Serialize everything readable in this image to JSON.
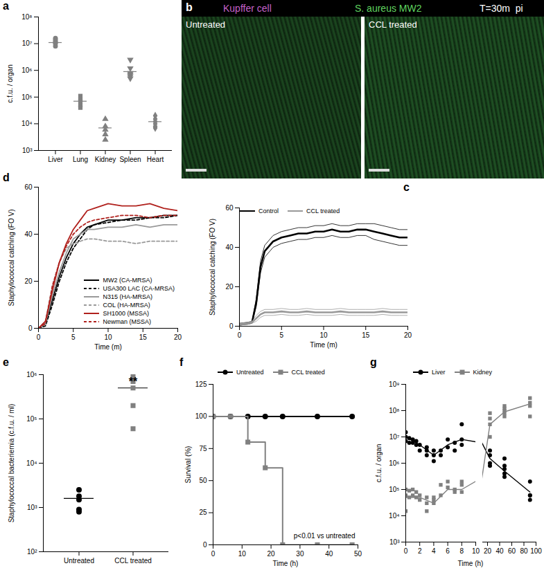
{
  "chart_data": [
    {
      "panel": "a",
      "type": "scatter",
      "ylabel": "c.f.u. / organ",
      "log": "y",
      "ylim": [
        1000,
        100000000
      ],
      "yticks": [
        {
          "value": 1000,
          "label": "10³"
        },
        {
          "value": 10000,
          "label": "10⁴"
        },
        {
          "value": 100000,
          "label": "10⁵"
        },
        {
          "value": 1000000,
          "label": "10⁶"
        },
        {
          "value": 10000000,
          "label": "10⁷"
        },
        {
          "value": 100000000,
          "label": "10⁸"
        }
      ],
      "series": [
        {
          "name": "Liver",
          "marker": "circle",
          "color": "#808080",
          "values": [
            12000000,
            14000000,
            8000000,
            10000000,
            16000000,
            11000000
          ],
          "mean": 11000000
        },
        {
          "name": "Lung",
          "marker": "square",
          "color": "#808080",
          "values": [
            110000,
            70000,
            50000,
            40000,
            80000
          ],
          "mean": 70000
        },
        {
          "name": "Kidney",
          "marker": "triangle",
          "color": "#808080",
          "values": [
            15000,
            8000,
            6000,
            2500,
            4000
          ],
          "mean": 7000
        },
        {
          "name": "Spleen",
          "marker": "triangle-down",
          "color": "#808080",
          "values": [
            2500000,
            1200000,
            800000,
            600000,
            700000,
            500000
          ],
          "mean": 900000
        },
        {
          "name": "Heart",
          "marker": "diamond",
          "color": "#808080",
          "values": [
            20000,
            15000,
            12000,
            10000,
            7000,
            8000
          ],
          "mean": 12000
        }
      ]
    },
    {
      "panel": "b",
      "type": "image",
      "labels": {
        "channel1": "Kupffer cell",
        "channel2": "S. aureus MW2",
        "time": "T=30m  pi",
        "left": "Untreated",
        "right": "CCL treated"
      },
      "colors": [
        "#c561c9",
        "#5fd35f"
      ]
    },
    {
      "panel": "c",
      "type": "line",
      "xlabel": "Time (m)",
      "ylabel": "Staphylococcal catching (FO V)",
      "x": [
        0,
        1,
        1.5,
        2,
        2.5,
        3,
        4,
        5,
        6,
        7,
        8,
        9,
        10,
        11,
        12,
        13,
        14,
        15,
        16,
        17,
        18,
        19,
        20
      ],
      "xlim": [
        0,
        20
      ],
      "xticks": [
        0,
        5,
        10,
        15,
        20
      ],
      "ylim": [
        0,
        60
      ],
      "yticks": [
        0,
        20,
        40,
        60
      ],
      "legend": "top",
      "series": [
        {
          "name": "Control",
          "color": "#000000",
          "line_style": "solid",
          "values": [
            1,
            1.5,
            2,
            12,
            30,
            38,
            43,
            45,
            46,
            47,
            47,
            48,
            48,
            49,
            48,
            48,
            49,
            49,
            48,
            47,
            46,
            45,
            45
          ],
          "error": [
            0.5,
            0.5,
            0.5,
            2,
            3,
            3,
            3,
            3,
            3,
            3,
            3,
            3,
            3,
            3,
            3,
            3,
            3,
            3,
            4,
            4,
            4,
            4,
            4
          ]
        },
        {
          "name": "CCL treated",
          "color": "#999999",
          "line_style": "solid",
          "values": [
            1,
            1.5,
            2,
            4,
            6,
            7,
            7,
            7.5,
            7,
            7,
            7.5,
            7,
            7,
            7,
            7.5,
            7,
            7,
            7,
            7,
            7.5,
            7,
            7,
            7
          ],
          "error": [
            0.5,
            0.5,
            0.5,
            1.5,
            1.5,
            1.5,
            1.5,
            1.5,
            1.5,
            1.5,
            1.5,
            1.5,
            1.5,
            1.5,
            1.5,
            1.5,
            1.5,
            1.5,
            1.5,
            1.5,
            1.5,
            1.5,
            1.5
          ]
        }
      ]
    },
    {
      "panel": "d",
      "type": "line",
      "xlabel": "Time (m)",
      "ylabel": "Staphylococcal catching (FO V)",
      "x": [
        0,
        1,
        2,
        3,
        4,
        5,
        6,
        7,
        8,
        10,
        12,
        14,
        16,
        18,
        20
      ],
      "xlim": [
        0,
        20
      ],
      "xticks": [
        0,
        5,
        10,
        15,
        20
      ],
      "ylim": [
        0,
        60
      ],
      "yticks": [
        0,
        20,
        40,
        60
      ],
      "legend": "bottom-right",
      "series": [
        {
          "name": "MW2 (CA-MRSA)",
          "color": "#000000",
          "line_style": "solid",
          "values": [
            0,
            2,
            12,
            22,
            30,
            36,
            40,
            43,
            44,
            46,
            46,
            47,
            47,
            48,
            48
          ]
        },
        {
          "name": "USA300 LAC (CA-MRSA)",
          "color": "#000000",
          "line_style": "dashed",
          "values": [
            0,
            1,
            10,
            20,
            28,
            34,
            38,
            42,
            44,
            45,
            46,
            46,
            47,
            47,
            48
          ]
        },
        {
          "name": "N315 (HA-MRSA)",
          "color": "#999999",
          "line_style": "solid",
          "values": [
            0,
            2,
            14,
            24,
            32,
            38,
            40,
            42,
            42,
            43,
            43,
            44,
            43,
            44,
            44
          ]
        },
        {
          "name": "COL (HA-MRSA)",
          "color": "#999999",
          "line_style": "dashed",
          "values": [
            0,
            3,
            18,
            28,
            34,
            36,
            37,
            38,
            38,
            37,
            37,
            36,
            37,
            37,
            37
          ]
        },
        {
          "name": "SH1000 (MSSA)",
          "color": "#b0201c",
          "line_style": "solid",
          "values": [
            0,
            3,
            16,
            28,
            36,
            42,
            46,
            50,
            51,
            53,
            52,
            52,
            53,
            51,
            50
          ]
        },
        {
          "name": "Newman (MSSA)",
          "color": "#b0201c",
          "line_style": "dashed",
          "values": [
            0,
            2,
            18,
            28,
            35,
            40,
            43,
            45,
            46,
            47,
            48,
            48,
            47,
            48,
            48
          ]
        }
      ]
    },
    {
      "panel": "e",
      "type": "scatter",
      "ylabel": "Staphylococcal bacteriemia (c.f.u. / ml)",
      "log": "y",
      "ylim": [
        100,
        1000000
      ],
      "yticks": [
        {
          "value": 100,
          "label": "10²"
        },
        {
          "value": 1000,
          "label": "10³"
        },
        {
          "value": 10000,
          "label": "10⁴"
        },
        {
          "value": 100000,
          "label": "10⁵"
        },
        {
          "value": 1000000,
          "label": "10⁶"
        }
      ],
      "annotations": [
        {
          "text": "**",
          "x": "CCL treated"
        }
      ],
      "series": [
        {
          "name": "Untreated",
          "marker": "circle",
          "color": "#000000",
          "values": [
            2500,
            1800,
            1500,
            900,
            800
          ],
          "mean": 1600
        },
        {
          "name": "CCL treated",
          "marker": "square",
          "color": "#808080",
          "values": [
            900000,
            700000,
            500000,
            200000,
            60000
          ],
          "mean": 500000
        }
      ]
    },
    {
      "panel": "f",
      "type": "line",
      "xlabel": "Time (h)",
      "ylabel": "Survival (%)",
      "x": [
        0,
        6,
        12,
        18,
        24,
        36,
        48
      ],
      "xlim": [
        0,
        50
      ],
      "xticks": [
        0,
        10,
        20,
        30,
        40,
        50
      ],
      "ylim": [
        0,
        125
      ],
      "yticks": [
        0,
        25,
        50,
        75,
        100,
        125
      ],
      "legend": "top",
      "annotations": [
        {
          "text": "p<0.01 vs untreated"
        }
      ],
      "series": [
        {
          "name": "Untreated",
          "marker": "circle",
          "color": "#000000",
          "line_style": "solid",
          "values": [
            100,
            100,
            100,
            100,
            100,
            100,
            100
          ]
        },
        {
          "name": "CCL treated",
          "marker": "square",
          "color": "#808080",
          "line_style": "step",
          "values": [
            100,
            100,
            80,
            60,
            0,
            0,
            0
          ]
        }
      ]
    },
    {
      "panel": "g",
      "type": "scatter",
      "xlabel": "Time (h)",
      "ylabel": "c.f.u. / organ",
      "log": "y",
      "legend": "top",
      "ylim": [
        1000,
        1000000000
      ],
      "yticks": [
        {
          "value": 1000,
          "label": "10³"
        },
        {
          "value": 10000,
          "label": "10⁴"
        },
        {
          "value": 100000,
          "label": "10⁵"
        },
        {
          "value": 1000000,
          "label": "10⁶"
        },
        {
          "value": 10000000,
          "label": "10⁷"
        },
        {
          "value": 100000000,
          "label": "10⁸"
        },
        {
          "value": 1000000000,
          "label": "10⁹"
        }
      ],
      "segments": [
        {
          "xlim": [
            0,
            10
          ],
          "xticks": [
            0,
            2,
            4,
            6,
            8,
            10
          ]
        },
        {
          "xlim": [
            12,
            100
          ],
          "xticks": [
            20,
            40,
            60,
            80,
            100
          ]
        }
      ],
      "x": [
        0,
        0,
        0,
        0.5,
        0.5,
        1,
        1,
        1.5,
        1.5,
        2,
        2,
        3,
        3,
        3,
        4,
        4,
        4,
        5,
        5,
        6,
        6,
        7,
        7,
        8,
        8,
        8,
        24,
        24,
        24,
        24,
        48,
        48,
        48,
        48,
        48,
        90,
        90,
        90,
        90
      ],
      "mean_x": [
        0,
        2,
        4,
        6,
        8,
        24,
        48,
        90
      ],
      "series": [
        {
          "name": "Liver",
          "marker": "circle",
          "color": "#000000",
          "values": [
            10000000.0,
            7000000.0,
            15000000.0,
            9000000.0,
            6000000.0,
            8000000.0,
            6000000.0,
            7000000.0,
            5000000.0,
            5000000.0,
            3000000.0,
            3000000.0,
            2000000.0,
            4000000.0,
            2000000.0,
            1200000.0,
            3000000.0,
            3000000.0,
            2000000.0,
            4000000.0,
            8000000.0,
            6000000.0,
            3000000.0,
            30000000.0,
            8000000.0,
            5000000.0,
            2000000.0,
            800000.0,
            3000000.0,
            1000000.0,
            1500000.0,
            600000.0,
            300000.0,
            400000.0,
            800000.0,
            200000.0,
            60000.0,
            40000.0,
            60000.0
          ],
          "mean": [
            10000000.0,
            5000000.0,
            2000000.0,
            5000000.0,
            8000000.0,
            1500000.0,
            500000.0,
            80000.0
          ]
        },
        {
          "name": "Kidney",
          "marker": "square",
          "color": "#808080",
          "values": [
            100000.0,
            60000.0,
            15000.0,
            50000.0,
            90000.0,
            60000.0,
            100000.0,
            80000.0,
            50000.0,
            40000.0,
            60000.0,
            30000.0,
            15000.0,
            50000.0,
            30000.0,
            40000.0,
            50000.0,
            60000.0,
            150000.0,
            120000.0,
            200000.0,
            80000.0,
            100000.0,
            150000.0,
            80000.0,
            200000.0,
            50000000.0,
            80000000.0,
            30000000.0,
            10000000.0,
            80000000.0,
            100000000.0,
            60000000.0,
            120000000.0,
            150000000.0,
            300000000.0,
            200000000.0,
            60000000.0,
            150000000.0
          ],
          "mean": [
            50000.0,
            50000.0,
            30000.0,
            100000.0,
            100000.0,
            30000000.0,
            90000000.0,
            180000000.0
          ]
        }
      ]
    }
  ]
}
